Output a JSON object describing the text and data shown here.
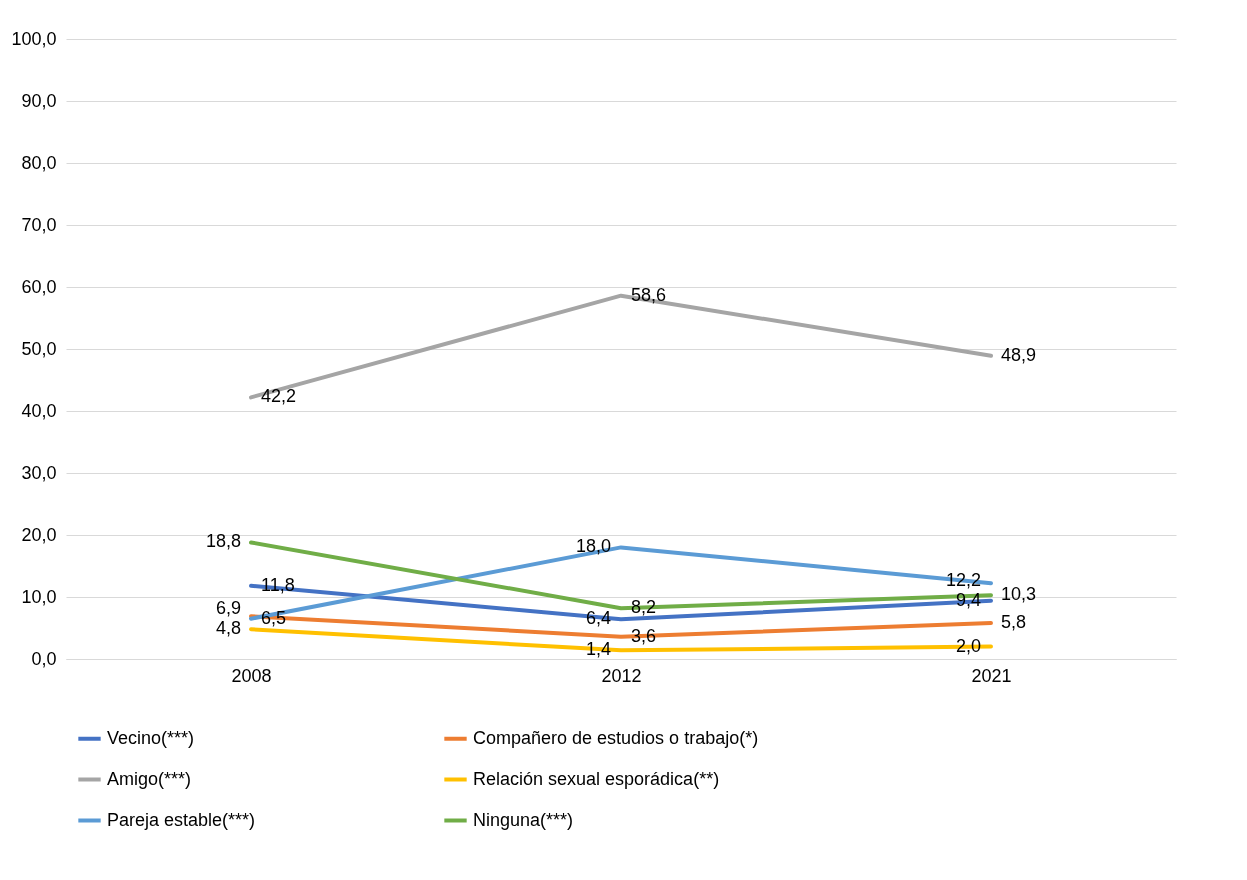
{
  "chart_data": {
    "type": "line",
    "categories": [
      "2008",
      "2012",
      "2021"
    ],
    "series": [
      {
        "name": "Vecino(***)",
        "color": "#4472c4",
        "values": [
          11.8,
          6.4,
          9.4
        ],
        "value_labels": [
          "11,8",
          "6,4",
          "9,4"
        ]
      },
      {
        "name": "Compañero de estudios o trabajo(*)",
        "color": "#ed7d31",
        "values": [
          6.9,
          3.6,
          5.8
        ],
        "value_labels": [
          "6,9",
          "3,6",
          "5,8"
        ]
      },
      {
        "name": "Amigo(***)",
        "color": "#a5a5a5",
        "values": [
          42.2,
          58.6,
          48.9
        ],
        "value_labels": [
          "42,2",
          "58,6",
          "48,9"
        ]
      },
      {
        "name": "Relación sexual esporádica(**)",
        "color": "#ffc000",
        "values": [
          4.8,
          1.4,
          2.0
        ],
        "value_labels": [
          "4,8",
          "1,4",
          "2,0"
        ]
      },
      {
        "name": "Pareja estable(***)",
        "color": "#5b9bd5",
        "values": [
          6.5,
          18.0,
          12.2
        ],
        "value_labels": [
          "6,5",
          "18,0",
          "12,2"
        ]
      },
      {
        "name": "Ninguna(***)",
        "color": "#70ad47",
        "values": [
          18.8,
          8.2,
          10.3
        ],
        "value_labels": [
          "18,8",
          "8,2",
          "10,3"
        ]
      }
    ],
    "ylim": [
      0,
      100
    ],
    "yticks": [
      {
        "value": 0,
        "label": "0,0"
      },
      {
        "value": 10,
        "label": "10,0"
      },
      {
        "value": 20,
        "label": "20,0"
      },
      {
        "value": 30,
        "label": "30,0"
      },
      {
        "value": 40,
        "label": "40,0"
      },
      {
        "value": 50,
        "label": "50,0"
      },
      {
        "value": 60,
        "label": "60,0"
      },
      {
        "value": 70,
        "label": "70,0"
      },
      {
        "value": 80,
        "label": "80,0"
      },
      {
        "value": 90,
        "label": "90,0"
      },
      {
        "value": 100,
        "label": "100,0"
      }
    ],
    "grid": "y",
    "legend": "bottom",
    "marker": "none",
    "line_style": "solid"
  }
}
